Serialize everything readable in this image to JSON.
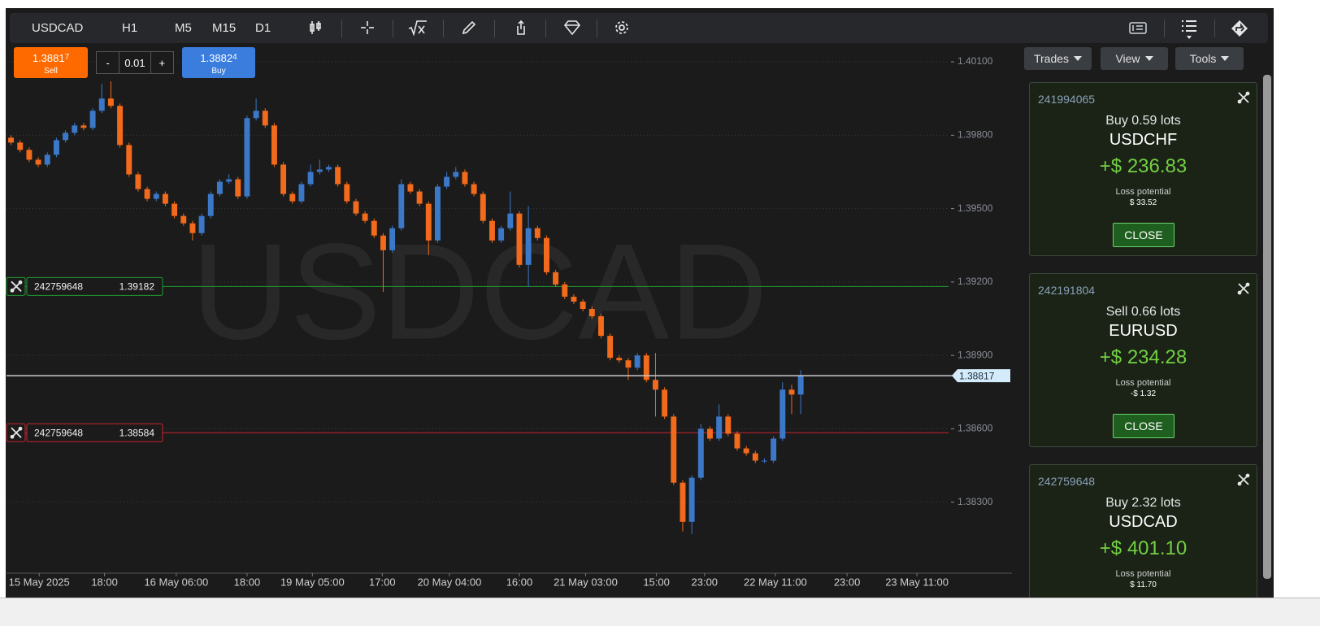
{
  "toolbar": {
    "symbol": "USDCAD",
    "timeframe": "H1",
    "timeframes": [
      "M5",
      "M15",
      "D1"
    ]
  },
  "order_panel": {
    "sell": {
      "price_main": "1.3881",
      "price_pip": "7",
      "label": "Sell"
    },
    "buy": {
      "price_main": "1.3882",
      "price_pip": "4",
      "label": "Buy"
    },
    "lot": {
      "minus": "-",
      "value": "0.01",
      "plus": "+"
    }
  },
  "side_panel": {
    "buttons": [
      "Trades",
      "View",
      "Tools"
    ],
    "positions": [
      {
        "id": "241994065",
        "side": "Buy 0.59 lots",
        "symbol": "USDCHF",
        "profit": "+$ 236.83",
        "loss_label": "Loss potential",
        "loss": "$ 33.52",
        "action": "CLOSE"
      },
      {
        "id": "242191804",
        "side": "Sell 0.66 lots",
        "symbol": "EURUSD",
        "profit": "+$ 234.28",
        "loss_label": "Loss potential",
        "loss": "-$ 1.32",
        "action": "CLOSE"
      },
      {
        "id": "242759648",
        "side": "Buy 2.32 lots",
        "symbol": "USDCAD",
        "profit": "+$ 401.10",
        "loss_label": "Loss potential",
        "loss": "$ 11.70"
      }
    ]
  },
  "chart_data": {
    "type": "candlestick",
    "watermark": "USDCAD",
    "up_color": "#3c78c8",
    "down_color": "#f26a1b",
    "grid": true,
    "series": {
      "open": [
        1.3979,
        1.3977,
        1.3974,
        1.397,
        1.3968,
        1.3972,
        1.3978,
        1.3981,
        1.3984,
        1.3983,
        1.399,
        1.3995,
        1.3992,
        1.3976,
        1.3964,
        1.3958,
        1.3954,
        1.3956,
        1.3952,
        1.3947,
        1.3944,
        1.394,
        1.3947,
        1.3956,
        1.3961,
        1.3962,
        1.3955,
        1.3987,
        1.399,
        1.3984,
        1.3968,
        1.3956,
        1.3953,
        1.396,
        1.3965,
        1.3966,
        1.3967,
        1.396,
        1.3953,
        1.3948,
        1.3945,
        1.3939,
        1.3933,
        1.3942,
        1.396,
        1.3957,
        1.3952,
        1.3937,
        1.3959,
        1.3963,
        1.3965,
        1.396,
        1.3956,
        1.3945,
        1.3937,
        1.3942,
        1.3948,
        1.3927,
        1.3942,
        1.3938,
        1.3924,
        1.3919,
        1.3914,
        1.3912,
        1.3909,
        1.3906,
        1.3898,
        1.3889,
        1.3888,
        1.3885,
        1.389,
        1.388,
        1.3876,
        1.3865,
        1.3838,
        1.3822,
        1.384,
        1.386,
        1.3856,
        1.3865,
        1.3858,
        1.3852,
        1.385,
        1.3847,
        1.3847,
        1.3856,
        1.3876,
        1.3874
      ],
      "high": [
        1.398,
        1.3978,
        1.3975,
        1.3971,
        1.3973,
        1.3979,
        1.3982,
        1.3985,
        1.3985,
        1.3991,
        1.4001,
        1.4002,
        1.3993,
        1.3977,
        1.3965,
        1.3959,
        1.3957,
        1.3957,
        1.3953,
        1.3948,
        1.3945,
        1.3948,
        1.3957,
        1.3962,
        1.3964,
        1.3963,
        1.3988,
        1.3995,
        1.3991,
        1.3985,
        1.3969,
        1.3957,
        1.3961,
        1.3968,
        1.397,
        1.3968,
        1.3968,
        1.3961,
        1.3954,
        1.3949,
        1.3946,
        1.394,
        1.3943,
        1.3962,
        1.3961,
        1.3958,
        1.3953,
        1.396,
        1.3965,
        1.3967,
        1.3966,
        1.3961,
        1.3957,
        1.3946,
        1.3943,
        1.3957,
        1.3949,
        1.3951,
        1.3943,
        1.3939,
        1.3925,
        1.392,
        1.3915,
        1.3913,
        1.391,
        1.3907,
        1.3899,
        1.389,
        1.3889,
        1.3891,
        1.3891,
        1.3891,
        1.3877,
        1.3866,
        1.3839,
        1.3841,
        1.3862,
        1.3861,
        1.387,
        1.3866,
        1.3859,
        1.3853,
        1.3851,
        1.3848,
        1.3857,
        1.3879,
        1.3878,
        1.3884
      ],
      "low": [
        1.3976,
        1.3973,
        1.3969,
        1.3967,
        1.3967,
        1.3971,
        1.3977,
        1.398,
        1.3982,
        1.3982,
        1.3989,
        1.3991,
        1.3975,
        1.3963,
        1.3957,
        1.3953,
        1.3953,
        1.3951,
        1.3946,
        1.3943,
        1.3937,
        1.3939,
        1.3946,
        1.3955,
        1.396,
        1.3954,
        1.3954,
        1.3986,
        1.3983,
        1.3967,
        1.3955,
        1.3952,
        1.3952,
        1.3959,
        1.3964,
        1.3965,
        1.3959,
        1.3952,
        1.3947,
        1.3944,
        1.3938,
        1.3916,
        1.3932,
        1.3941,
        1.3956,
        1.3951,
        1.3931,
        1.3936,
        1.3958,
        1.3962,
        1.3959,
        1.3955,
        1.3944,
        1.3936,
        1.3936,
        1.3941,
        1.3926,
        1.3918,
        1.3937,
        1.3923,
        1.3918,
        1.3913,
        1.3911,
        1.3908,
        1.3905,
        1.3897,
        1.3888,
        1.3887,
        1.388,
        1.3884,
        1.3879,
        1.3865,
        1.3864,
        1.3837,
        1.3818,
        1.3817,
        1.3839,
        1.3855,
        1.3855,
        1.3857,
        1.3851,
        1.3849,
        1.3846,
        1.3846,
        1.3846,
        1.3855,
        1.3866,
        1.3866
      ],
      "close": [
        1.3977,
        1.3974,
        1.397,
        1.3968,
        1.3972,
        1.3978,
        1.3981,
        1.3984,
        1.3983,
        1.399,
        1.3995,
        1.3992,
        1.3976,
        1.3964,
        1.3958,
        1.3954,
        1.3956,
        1.3952,
        1.3947,
        1.3944,
        1.394,
        1.3947,
        1.3956,
        1.3961,
        1.3962,
        1.3955,
        1.3987,
        1.399,
        1.3984,
        1.3968,
        1.3956,
        1.3953,
        1.396,
        1.3965,
        1.3966,
        1.3967,
        1.396,
        1.3953,
        1.3948,
        1.3945,
        1.3939,
        1.3933,
        1.3942,
        1.396,
        1.3957,
        1.3952,
        1.3937,
        1.3959,
        1.3963,
        1.3965,
        1.396,
        1.3956,
        1.3945,
        1.3937,
        1.3942,
        1.3948,
        1.3927,
        1.3942,
        1.3938,
        1.3924,
        1.3919,
        1.3914,
        1.3912,
        1.3909,
        1.3906,
        1.3898,
        1.3889,
        1.3888,
        1.3885,
        1.389,
        1.388,
        1.3876,
        1.3865,
        1.3838,
        1.3822,
        1.384,
        1.386,
        1.3856,
        1.3865,
        1.3858,
        1.3852,
        1.385,
        1.3847,
        1.3847,
        1.3856,
        1.3876,
        1.3874,
        1.38817
      ]
    },
    "ylim": [
      1.3801,
      1.4017
    ],
    "yticks": [
      {
        "value": 1.401,
        "label": "1.40100"
      },
      {
        "value": 1.398,
        "label": "1.39800"
      },
      {
        "value": 1.395,
        "label": "1.39500"
      },
      {
        "value": 1.392,
        "label": "1.39200"
      },
      {
        "value": 1.389,
        "label": "1.38900"
      },
      {
        "value": 1.386,
        "label": "1.38600"
      },
      {
        "value": 1.383,
        "label": "1.38300"
      }
    ],
    "xlim": [
      -0.5,
      104
    ],
    "xticks": [
      {
        "value": 3.1,
        "label": "15 May 2025"
      },
      {
        "value": 10.3,
        "label": "18:00"
      },
      {
        "value": 18.2,
        "label": "16 May 06:00"
      },
      {
        "value": 26,
        "label": "18:00"
      },
      {
        "value": 33.2,
        "label": "19 May 05:00"
      },
      {
        "value": 40.9,
        "label": "17:00"
      },
      {
        "value": 48.3,
        "label": "20 May 04:00"
      },
      {
        "value": 56,
        "label": "16:00"
      },
      {
        "value": 63.3,
        "label": "21 May 03:00"
      },
      {
        "value": 71.1,
        "label": "15:00"
      },
      {
        "value": 76.4,
        "label": "23:00"
      },
      {
        "value": 84.2,
        "label": "22 May 11:00"
      },
      {
        "value": 92.1,
        "label": "23:00"
      },
      {
        "value": 99.8,
        "label": "23 May 11:00"
      }
    ],
    "price_lines": [
      {
        "id": "242759648",
        "value": 1.39182,
        "color": "#1f9a2f"
      },
      {
        "id": "242759648",
        "value": 1.38584,
        "color": "#c8232c"
      }
    ],
    "current_price": {
      "value": 1.38817,
      "color": "#c9c9c9"
    }
  }
}
